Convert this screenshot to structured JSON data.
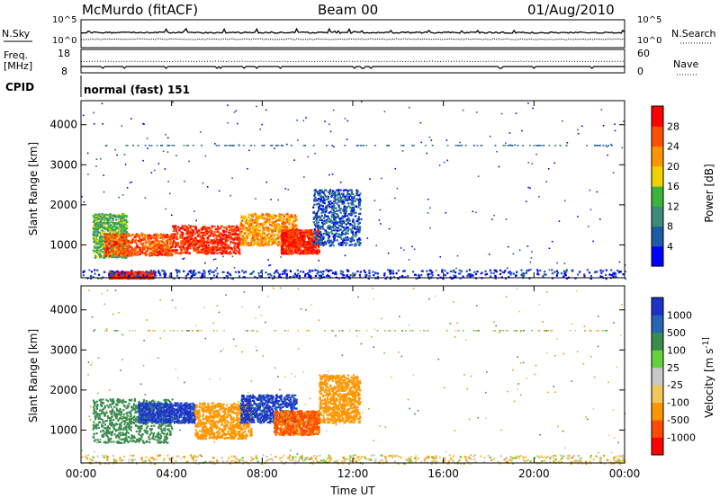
{
  "header": {
    "station": "McMurdo (fitACF)",
    "beam": "Beam 00",
    "date": "01/Aug/2010"
  },
  "status_panels": {
    "nsky_label": "N.Sky",
    "nsearch_label": "N.Search",
    "noise_ticks_left": [
      "10^5",
      "10^0"
    ],
    "noise_ticks_right": [
      "10^5",
      "10^0"
    ],
    "freq_label": "Freq.",
    "freq_unit": "[MHz]",
    "freq_ticks": [
      "18",
      "8"
    ],
    "nave_label": "Nave",
    "nave_ticks": [
      "60",
      "0"
    ],
    "cpid_label": "CPID",
    "cpid_value": "normal (fast) 151"
  },
  "colors": {
    "power_scale": [
      "#0000ff",
      "#1f5aa6",
      "#3c8c7a",
      "#3cb43c",
      "#f0d200",
      "#ff9600",
      "#ff5000",
      "#ff0000"
    ],
    "velocity_scale": [
      "#ff0000",
      "#ff4b00",
      "#ff9600",
      "#f0c85a",
      "#c8c8c8",
      "#64d23c",
      "#3c8c50",
      "#2864b4",
      "#1e32c8"
    ]
  },
  "chart_data": [
    {
      "type": "heatmap",
      "title": "",
      "xlabel": "",
      "ylabel": "Slant Range [km]",
      "xlim": [
        0,
        24
      ],
      "ylim": [
        180,
        4600
      ],
      "x_ticks": [],
      "y_ticks": [
        "1000",
        "2000",
        "3000",
        "4000"
      ],
      "grid": false,
      "colorbar": {
        "label": "Power [dB]",
        "ticks": [
          "4",
          "8",
          "12",
          "16",
          "20",
          "24",
          "28"
        ],
        "range": [
          0,
          32
        ]
      },
      "scatter_bands": [
        {
          "t_start": 0.5,
          "t_end": 2.0,
          "r_low": 700,
          "r_high": 1800,
          "value": 14
        },
        {
          "t_start": 1.0,
          "t_end": 4.0,
          "r_low": 750,
          "r_high": 1300,
          "value": 26
        },
        {
          "t_start": 4.0,
          "t_end": 7.0,
          "r_low": 800,
          "r_high": 1500,
          "value": 28
        },
        {
          "t_start": 7.0,
          "t_end": 9.5,
          "r_low": 1000,
          "r_high": 1800,
          "value": 22
        },
        {
          "t_start": 8.8,
          "t_end": 10.5,
          "r_low": 800,
          "r_high": 1400,
          "value": 28
        },
        {
          "t_start": 10.2,
          "t_end": 12.3,
          "r_low": 1000,
          "r_high": 2400,
          "value": 6
        },
        {
          "t_start": 1.2,
          "t_end": 3.2,
          "r_low": 180,
          "r_high": 350,
          "value": 28
        },
        {
          "t_start": 0.0,
          "t_end": 24.0,
          "r_low": 180,
          "r_high": 400,
          "value": 4
        }
      ]
    },
    {
      "type": "heatmap",
      "title": "",
      "xlabel": "Time UT",
      "ylabel": "Slant Range [km]",
      "xlim": [
        0,
        24
      ],
      "ylim": [
        180,
        4600
      ],
      "x_ticks": [
        "00:00",
        "04:00",
        "08:00",
        "12:00",
        "16:00",
        "20:00",
        "00:00"
      ],
      "y_ticks": [
        "1000",
        "2000",
        "3000",
        "4000"
      ],
      "grid": false,
      "colorbar": {
        "label": "Velocity [m s^-1]",
        "ticks": [
          "-1000",
          "-500",
          "-100",
          "-25",
          "25",
          "100",
          "500",
          "1000"
        ],
        "range": [
          -1500,
          1500
        ]
      },
      "scatter_bands": [
        {
          "t_start": 0.5,
          "t_end": 4.0,
          "r_low": 700,
          "r_high": 1800,
          "value": 300
        },
        {
          "t_start": 2.5,
          "t_end": 5.0,
          "r_low": 1200,
          "r_high": 1700,
          "value": 1200
        },
        {
          "t_start": 5.0,
          "t_end": 7.5,
          "r_low": 800,
          "r_high": 1700,
          "value": -200
        },
        {
          "t_start": 7.0,
          "t_end": 9.5,
          "r_low": 1200,
          "r_high": 1900,
          "value": 1200
        },
        {
          "t_start": 8.5,
          "t_end": 10.5,
          "r_low": 900,
          "r_high": 1500,
          "value": -600
        },
        {
          "t_start": 10.5,
          "t_end": 12.3,
          "r_low": 1200,
          "r_high": 2400,
          "value": -200
        },
        {
          "t_start": 0.0,
          "t_end": 24.0,
          "r_low": 180,
          "r_high": 400,
          "value": -50
        }
      ]
    }
  ]
}
